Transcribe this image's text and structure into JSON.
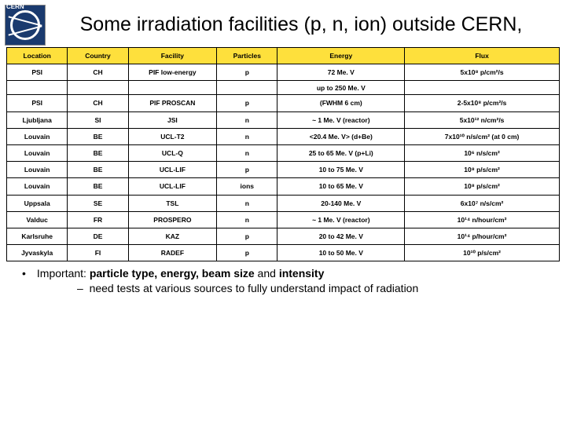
{
  "title": "Some irradiation facilities (p, n, ion) outside CERN,",
  "columns": [
    "Location",
    "Country",
    "Facility",
    "Particles",
    "Energy",
    "Flux"
  ],
  "rows": [
    {
      "loc": "PSI",
      "cty": "CH",
      "fac": "PIF low-energy",
      "part": "p",
      "en": "72 Me. V",
      "flux": "5x10⁸ p/cm²/s"
    },
    {
      "spacer": true,
      "en": "up to 250 Me. V"
    },
    {
      "loc": "PSI",
      "cty": "CH",
      "fac": "PIF PROSCAN",
      "part": "p",
      "en": "(FWHM 6 cm)",
      "flux": "2-5x10⁸ p/cm²/s"
    },
    {
      "loc": "Ljubljana",
      "cty": "SI",
      "fac": "JSI",
      "part": "n",
      "en": "~ 1 Me. V (reactor)",
      "flux": "5x10¹² n/cm²/s"
    },
    {
      "loc": "Louvain",
      "cty": "BE",
      "fac": "UCL-T2",
      "part": "n",
      "en": "<20.4 Me. V> (d+Be)",
      "flux": "7x10¹⁰ n/s/cm² (at 0 cm)"
    },
    {
      "loc": "Louvain",
      "cty": "BE",
      "fac": "UCL-Q",
      "part": "n",
      "en": "25 to 65 Me. V (p+Li)",
      "flux": "10⁶ n/s/cm²"
    },
    {
      "loc": "Louvain",
      "cty": "BE",
      "fac": "UCL-LIF",
      "part": "p",
      "en": "10 to 75 Me. V",
      "flux": "10⁸ p/s/cm²"
    },
    {
      "loc": "Louvain",
      "cty": "BE",
      "fac": "UCL-LIF",
      "part": "ions",
      "en": "10 to 65 Me. V",
      "flux": "10⁸ p/s/cm²"
    },
    {
      "loc": "Uppsala",
      "cty": "SE",
      "fac": "TSL",
      "part": "n",
      "en": "20-140 Me. V",
      "flux": "6x10⁷ n/s/cm²"
    },
    {
      "loc": "Valduc",
      "cty": "FR",
      "fac": "PROSPERO",
      "part": "n",
      "en": "~ 1 Me. V (reactor)",
      "flux": "10¹⁴ n/hour/cm²"
    },
    {
      "loc": "Karlsruhe",
      "cty": "DE",
      "fac": "KAZ",
      "part": "p",
      "en": "20 to 42 Me. V",
      "flux": "10¹⁴ p/hour/cm²"
    },
    {
      "loc": "Jyvaskyla",
      "cty": "FI",
      "fac": "RADEF",
      "part": "p",
      "en": "10 to 50 Me. V",
      "flux": "10¹⁰ p/s/cm²"
    }
  ],
  "foot_lead": "Important: ",
  "foot_bold": "particle type, energy, beam size",
  "foot_mid": " and ",
  "foot_bold2": "intensity",
  "foot_sub": "need tests at various sources to fully understand impact of radiation"
}
